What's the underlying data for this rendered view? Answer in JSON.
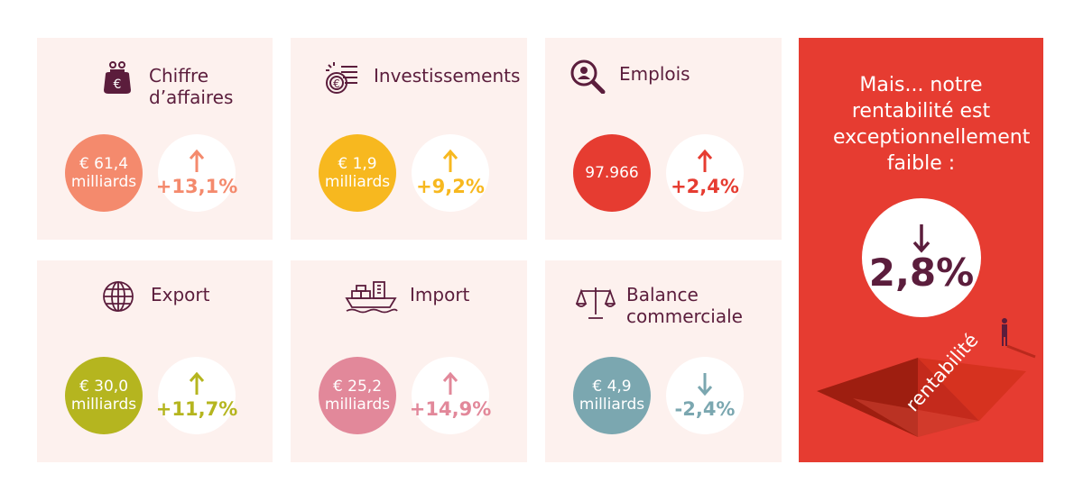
{
  "cards": [
    {
      "title": "Chiffre d’affaires",
      "value_line1": "€ 61,4",
      "value_line2": "milliards",
      "change": "+13,1%",
      "direction": "up",
      "color": "#f48a6d",
      "icon": "purse-euro-icon"
    },
    {
      "title": "Investissements",
      "value_line1": "€ 1,9",
      "value_line2": "milliards",
      "change": "+9,2%",
      "direction": "up",
      "color": "#f7b81f",
      "icon": "coins-euro-icon"
    },
    {
      "title": "Emplois",
      "value_line1": "97.966",
      "value_line2": "",
      "change": "+2,4%",
      "direction": "up",
      "color": "#e63c31",
      "icon": "magnifier-person-icon"
    },
    {
      "title": "Export",
      "value_line1": "€ 30,0",
      "value_line2": "milliards",
      "change": "+11,7%",
      "direction": "up",
      "color": "#b5b51f",
      "icon": "globe-icon"
    },
    {
      "title": "Import",
      "value_line1": "€ 25,2",
      "value_line2": "milliards",
      "change": "+14,9%",
      "direction": "up",
      "color": "#e2889a",
      "icon": "cargo-ship-icon"
    },
    {
      "title": "Balance commerciale",
      "value_line1": "€ 4,9",
      "value_line2": "milliards",
      "change": "-2,4%",
      "direction": "down",
      "color": "#7ba7b0",
      "icon": "scale-balance-icon"
    }
  ],
  "promo": {
    "text": "Mais... notre rentabilité est exceptionnellement faible :",
    "value": "2,8%",
    "direction": "down",
    "pyramid_label": "rentabilité",
    "background": "#e63c31",
    "dark_color": "#5b1d3c"
  }
}
